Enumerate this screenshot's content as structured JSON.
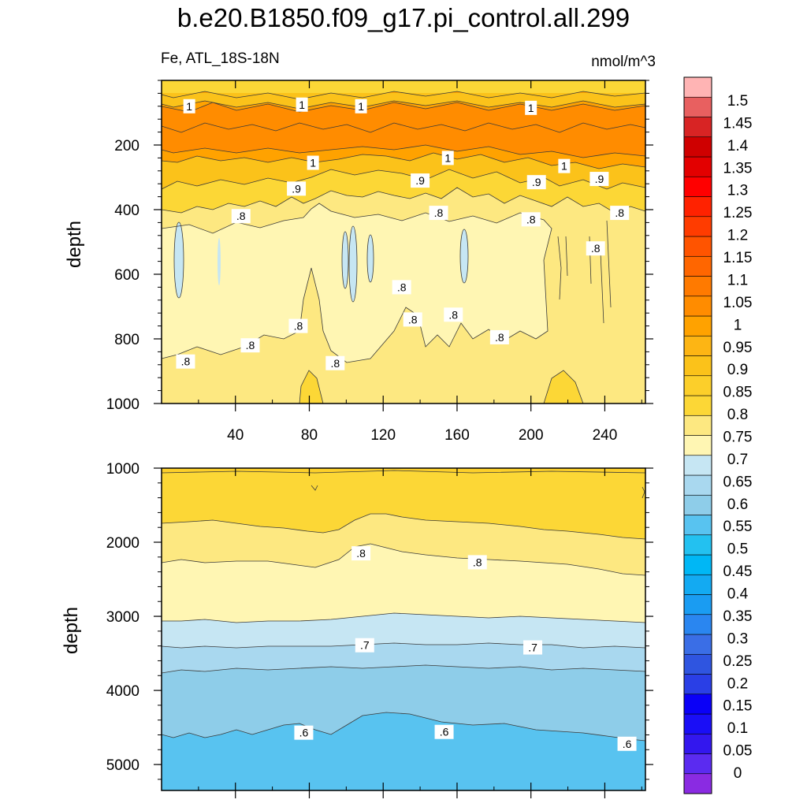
{
  "title": "b.e20.B1850.f09_g17.pi_control.all.299",
  "variable_label": "Fe, ATL_18S-18N",
  "units": "nmol/m^3",
  "colors": {
    "fill_levels": [
      "#8a2be2",
      "#5b2bf0",
      "#3317ee",
      "#1a0ef6",
      "#0a00f7",
      "#2a3fe6",
      "#2f55e0",
      "#3a6ee6",
      "#2a86f0",
      "#1a9cf2",
      "#13aaf2",
      "#00b7f5",
      "#23c1f0",
      "#58c3f0",
      "#8ecde9",
      "#a9d8ef",
      "#c6e6f3",
      "#fff6b3",
      "#fde881",
      "#fcd736",
      "#fccf2a",
      "#fbc21a",
      "#fdb514",
      "#ffa200",
      "#ff8c00",
      "#ff7a00",
      "#ff6600",
      "#ff5400",
      "#ff3c00",
      "#ff2200",
      "#ff0000",
      "#e30000",
      "#cf0000",
      "#d82424",
      "#e86060",
      "#ffb4b4"
    ]
  },
  "chart_data": [
    {
      "type": "heatmap",
      "panel": "upper",
      "xlabel": "",
      "ylabel": "depth",
      "xlim": [
        0,
        262
      ],
      "ylim": [
        1000,
        0
      ],
      "xticks": [
        40,
        80,
        120,
        160,
        200,
        240
      ],
      "yticks": [
        200,
        400,
        600,
        800,
        1000
      ],
      "contour_labels": [
        {
          "text": "1",
          "x": 15,
          "y": 80
        },
        {
          "text": "1",
          "x": 76,
          "y": 75
        },
        {
          "text": "1",
          "x": 108,
          "y": 80
        },
        {
          "text": "1",
          "x": 200,
          "y": 85
        },
        {
          "text": "1",
          "x": 82,
          "y": 255
        },
        {
          "text": "1",
          "x": 155,
          "y": 240
        },
        {
          "text": "1",
          "x": 218,
          "y": 265
        },
        {
          "text": ".9",
          "x": 73,
          "y": 335
        },
        {
          "text": ".9",
          "x": 140,
          "y": 310
        },
        {
          "text": ".9",
          "x": 203,
          "y": 315
        },
        {
          "text": ".9",
          "x": 237,
          "y": 305
        },
        {
          "text": ".8",
          "x": 43,
          "y": 420
        },
        {
          "text": ".8",
          "x": 150,
          "y": 410
        },
        {
          "text": ".8",
          "x": 200,
          "y": 430
        },
        {
          "text": ".8",
          "x": 248,
          "y": 410
        },
        {
          "text": ".8",
          "x": 235,
          "y": 520
        },
        {
          "text": ".8",
          "x": 130,
          "y": 640
        },
        {
          "text": ".8",
          "x": 74,
          "y": 760
        },
        {
          "text": ".8",
          "x": 136,
          "y": 740
        },
        {
          "text": ".8",
          "x": 158,
          "y": 725
        },
        {
          "text": ".8",
          "x": 183,
          "y": 795
        },
        {
          "text": ".8",
          "x": 48,
          "y": 820
        },
        {
          "text": ".8",
          "x": 13,
          "y": 870
        },
        {
          "text": ".8",
          "x": 94,
          "y": 875
        }
      ],
      "regions_note": "Fe > 1 near 100-250 m; 0.9 near 300 m; 0.75-0.8 from 400 to 1000 m; small 0.7-0.75 patches near 500-650 m"
    },
    {
      "type": "heatmap",
      "panel": "lower",
      "xlabel": "",
      "ylabel": "depth",
      "xlim": [
        0,
        262
      ],
      "ylim": [
        5350,
        1000
      ],
      "xticks": [
        40,
        80,
        120,
        160,
        200,
        240
      ],
      "yticks": [
        1000,
        2000,
        3000,
        4000,
        5000
      ],
      "contour_labels": [
        {
          "text": ".8",
          "x": 108,
          "y": 2150
        },
        {
          "text": ".8",
          "x": 171,
          "y": 2270
        },
        {
          "text": ".7",
          "x": 110,
          "y": 3390
        },
        {
          "text": ".7",
          "x": 201,
          "y": 3420
        },
        {
          "text": ".6",
          "x": 77,
          "y": 4570
        },
        {
          "text": ".6",
          "x": 153,
          "y": 4560
        },
        {
          "text": ".6",
          "x": 252,
          "y": 4720
        }
      ]
    },
    {
      "type": "colorbar",
      "levels": [
        "0",
        "0.05",
        "0.1",
        "0.15",
        "0.2",
        "0.25",
        "0.3",
        "0.35",
        "0.4",
        "0.45",
        "0.5",
        "0.55",
        "0.6",
        "0.65",
        "0.7",
        "0.75",
        "0.8",
        "0.85",
        "0.9",
        "0.95",
        "1",
        "1.05",
        "1.1",
        "1.15",
        "1.2",
        "1.25",
        "1.3",
        "1.35",
        "1.4",
        "1.45",
        "1.5"
      ]
    }
  ]
}
